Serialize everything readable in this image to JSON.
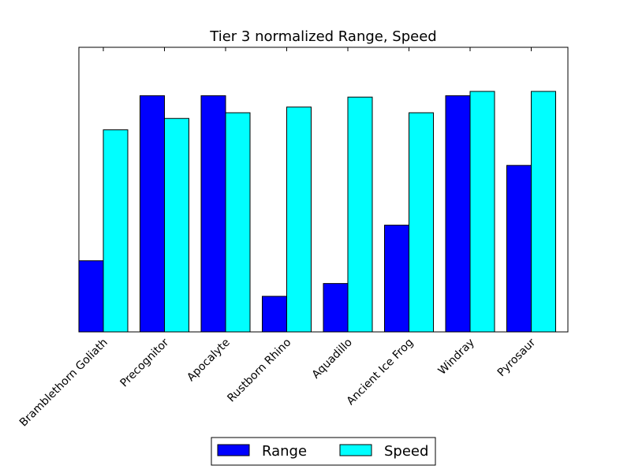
{
  "chart_data": {
    "type": "bar",
    "title": "Tier 3 normalized Range, Speed",
    "xlabel": "",
    "ylabel": "",
    "categories": [
      "Bramblethorn Goliath",
      "Precognitor",
      "Apocalyte",
      "Rustborn Rhino",
      "Aquadillo",
      "Ancient Ice Frog",
      "Windray",
      "Pyrosaur"
    ],
    "series": [
      {
        "name": "Range",
        "color": "#0000ff",
        "values": [
          0.25,
          0.83,
          0.83,
          0.125,
          0.17,
          0.375,
          0.83,
          0.585
        ]
      },
      {
        "name": "Speed",
        "color": "#00ffff",
        "values": [
          0.71,
          0.75,
          0.77,
          0.79,
          0.825,
          0.77,
          0.845,
          0.845
        ]
      }
    ],
    "ylim": [
      0,
      1
    ],
    "grid": false,
    "yticks_shown": false,
    "legend_position": "bottom-center"
  }
}
